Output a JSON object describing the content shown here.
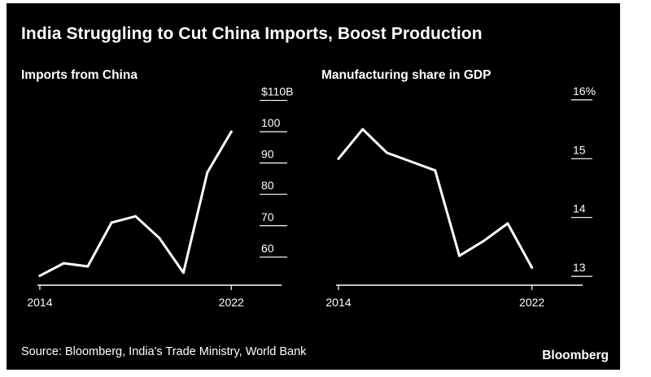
{
  "title": "India Struggling to Cut China Imports, Boost Production",
  "source": "Source: Bloomberg, India's Trade Ministry, World Bank",
  "brand": "Bloomberg",
  "colors": {
    "background": "#000000",
    "line": "#ffffff",
    "text": "#ffffff"
  },
  "chart_data": [
    {
      "type": "line",
      "title": "Imports from China",
      "x": [
        2014,
        2015,
        2016,
        2017,
        2018,
        2019,
        2020,
        2021,
        2022
      ],
      "values": [
        54,
        58,
        57,
        71,
        73,
        66,
        55,
        87,
        100
      ],
      "xticks": [
        2014,
        2022
      ],
      "xtick_labels": [
        "2014",
        "2022"
      ],
      "yticks": [
        60,
        70,
        80,
        90,
        100,
        110
      ],
      "ytick_labels": [
        "60",
        "70",
        "80",
        "90",
        "100",
        "$110B"
      ],
      "ylim": [
        51,
        113
      ],
      "xlim": [
        2013.9,
        2024.1
      ],
      "xlabel": "",
      "ylabel": ""
    },
    {
      "type": "line",
      "title": "Manufacturing share in GDP",
      "x": [
        2014,
        2015,
        2016,
        2017,
        2018,
        2019,
        2020,
        2021,
        2022
      ],
      "values": [
        15.0,
        15.5,
        15.1,
        14.95,
        14.8,
        13.35,
        13.6,
        13.9,
        13.15
      ],
      "xticks": [
        2014,
        2022
      ],
      "xtick_labels": [
        "2014",
        "2022"
      ],
      "yticks": [
        13,
        14,
        15,
        16
      ],
      "ytick_labels": [
        "13",
        "14",
        "15",
        "16%"
      ],
      "ylim": [
        12.85,
        16.15
      ],
      "xlim": [
        2013.9,
        2024.1
      ],
      "xlabel": "",
      "ylabel": ""
    }
  ]
}
